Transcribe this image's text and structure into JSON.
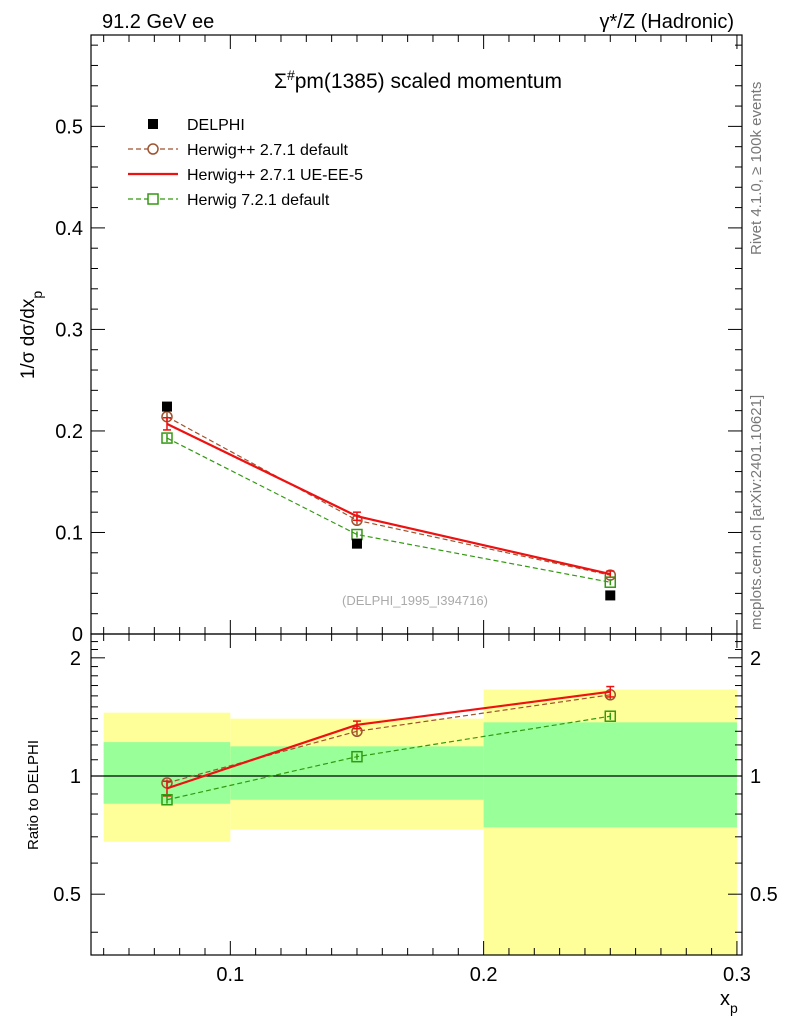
{
  "header": {
    "left_label": "91.2 GeV ee",
    "right_label": "γ*/Z (Hadronic)"
  },
  "side_labels": {
    "rivet": "Rivet 4.1.0, ≥ 100k events",
    "mcplots": "mcplots.cern.ch [arXiv:2401.10621]"
  },
  "chart_data": [
    {
      "type": "line",
      "title": "Σ#pm(1385) scaled momentum",
      "analysis_label": "(DELPHI_1995_I394716)",
      "xlabel": "x_p",
      "ylabel": "1/σ dσ/dx_p",
      "xlim": [
        0.045,
        0.302
      ],
      "ylim": [
        0,
        0.59
      ],
      "yticks": [
        0,
        0.1,
        0.2,
        0.3,
        0.4,
        0.5
      ],
      "ytick_labels": [
        "0",
        "0.1",
        "0.2",
        "0.3",
        "0.4",
        "0.5"
      ],
      "x": [
        0.075,
        0.15,
        0.25
      ],
      "series": [
        {
          "name": "DELPHI",
          "style": "data",
          "color": "#000000",
          "values": [
            0.224,
            0.089,
            0.038
          ]
        },
        {
          "name": "Herwig++ 2.7.1 default",
          "style": "dashed-circle",
          "color": "#a0522d",
          "values": [
            0.214,
            0.112,
            0.058
          ],
          "errors": [
            0.004,
            0.004,
            0.003
          ]
        },
        {
          "name": "Herwig++ 2.7.1 UE-EE-5",
          "style": "solid",
          "color": "#ee1111",
          "values": [
            0.207,
            0.116,
            0.059
          ],
          "errors": [
            0.006,
            0.004,
            0.003
          ]
        },
        {
          "name": "Herwig 7.2.1 default",
          "style": "dashed-square",
          "color": "#339911",
          "values": [
            0.193,
            0.098,
            0.051
          ],
          "errors": [
            0.004,
            0.003,
            0.003
          ]
        }
      ]
    },
    {
      "type": "line",
      "title": "",
      "xlabel": "x_p",
      "ylabel": "Ratio to DELPHI",
      "xlim": [
        0.045,
        0.302
      ],
      "ylim": [
        0.35,
        2.3
      ],
      "yticks": [
        0.5,
        1,
        2
      ],
      "ytick_labels": [
        "0.5",
        "1",
        "2"
      ],
      "xticks": [
        0.1,
        0.2,
        0.3
      ],
      "xtick_labels": [
        "0.1",
        "0.2",
        "0.3"
      ],
      "bins": [
        [
          0.05,
          0.1
        ],
        [
          0.1,
          0.2
        ],
        [
          0.2,
          0.3
        ]
      ],
      "band_stat": [
        [
          0.85,
          1.22
        ],
        [
          0.87,
          1.19
        ],
        [
          0.74,
          1.37
        ]
      ],
      "band_total": [
        [
          0.68,
          1.45
        ],
        [
          0.73,
          1.4
        ],
        [
          0.35,
          1.66
        ]
      ],
      "x": [
        0.075,
        0.15,
        0.25
      ],
      "series": [
        {
          "name": "Herwig++ 2.7.1 default",
          "style": "dashed-circle",
          "color": "#a0522d",
          "values": [
            0.96,
            1.3,
            1.61
          ],
          "errors": [
            0.02,
            0.03,
            0.04
          ]
        },
        {
          "name": "Herwig++ 2.7.1 UE-EE-5",
          "style": "solid",
          "color": "#ee1111",
          "values": [
            0.93,
            1.35,
            1.64
          ],
          "errors": [
            0.04,
            0.03,
            0.05
          ]
        },
        {
          "name": "Herwig 7.2.1 default",
          "style": "dashed-square",
          "color": "#339911",
          "values": [
            0.87,
            1.12,
            1.42
          ],
          "errors": [
            0.02,
            0.02,
            0.03
          ]
        }
      ]
    }
  ]
}
